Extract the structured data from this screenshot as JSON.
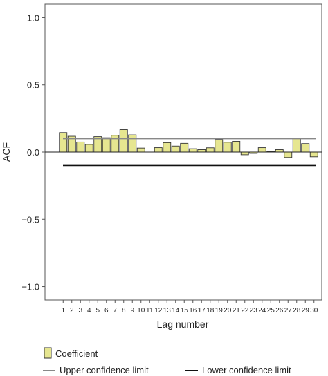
{
  "chart_data": {
    "type": "bar",
    "xlabel": "Lag number",
    "ylabel": "ACF",
    "ylim": [
      -1.1,
      1.1
    ],
    "yticks": [
      1.0,
      0.5,
      0.0,
      -0.5,
      -1.0
    ],
    "ytick_labels": [
      "1.0",
      "0.5",
      "0.0",
      "−0.5",
      "−1.0"
    ],
    "categories": [
      "1",
      "2",
      "3",
      "4",
      "5",
      "6",
      "7",
      "8",
      "9",
      "10",
      "11",
      "12",
      "13",
      "14",
      "15",
      "16",
      "17",
      "18",
      "19",
      "20",
      "21",
      "22",
      "23",
      "24",
      "25",
      "26",
      "27",
      "28",
      "29",
      "30"
    ],
    "series": [
      {
        "name": "Coefficient",
        "color": "#e6e690",
        "values": [
          0.145,
          0.118,
          0.075,
          0.057,
          0.115,
          0.107,
          0.125,
          0.167,
          0.128,
          0.03,
          0.0,
          0.033,
          0.07,
          0.045,
          0.065,
          0.025,
          0.018,
          0.032,
          0.093,
          0.073,
          0.08,
          -0.02,
          -0.01,
          0.033,
          0.005,
          0.018,
          -0.04,
          0.1,
          0.063,
          -0.035
        ]
      }
    ],
    "upper_confidence_limit": 0.1,
    "lower_confidence_limit": -0.1,
    "grid": false,
    "legend": {
      "placement": "bottom",
      "entries": [
        "Coefficient",
        "Upper confidence limit",
        "Lower confidence limit"
      ],
      "upper_color": "#888888",
      "lower_color": "#111111"
    }
  }
}
